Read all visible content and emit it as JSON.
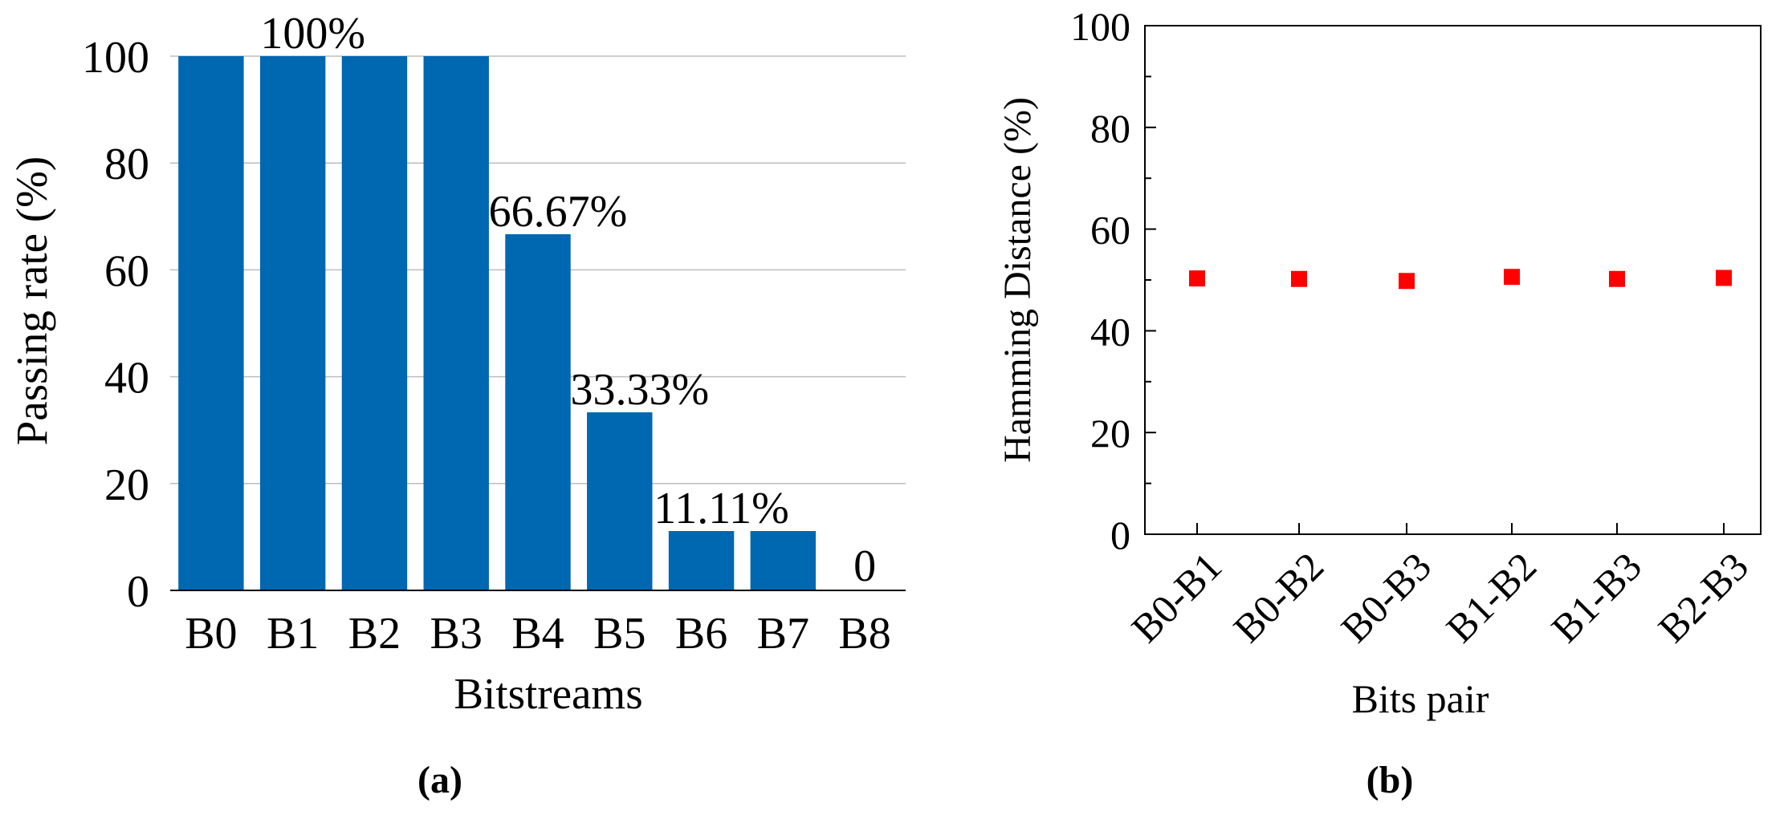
{
  "chart_data": [
    {
      "type": "bar",
      "panel_label": "(a)",
      "xlabel": "Bitstreams",
      "ylabel": "Passing rate (%)",
      "ylim": [
        0,
        100
      ],
      "yticks": [
        "0",
        "20",
        "40",
        "60",
        "80",
        "100"
      ],
      "ytick_values": [
        0,
        20,
        40,
        60,
        80,
        100
      ],
      "categories": [
        "B0",
        "B1",
        "B2",
        "B3",
        "B4",
        "B5",
        "B6",
        "B7",
        "B8"
      ],
      "values": [
        100,
        100,
        100,
        100,
        66.67,
        33.33,
        11.11,
        11.11,
        0
      ],
      "data_labels": [
        {
          "text": "100%",
          "category": "B1"
        },
        {
          "text": "66.67%",
          "category": "B4"
        },
        {
          "text": "33.33%",
          "category": "B5"
        },
        {
          "text": "11.11%",
          "category": "B6"
        },
        {
          "text": "0",
          "category": "B8"
        }
      ],
      "bar_color": "#0067B1",
      "grid": true
    },
    {
      "type": "scatter",
      "panel_label": "(b)",
      "xlabel": "Bits pair",
      "ylabel": "Hamming Distance (%)",
      "ylim": [
        0,
        100
      ],
      "yticks": [
        "0",
        "20",
        "40",
        "60",
        "80",
        "100"
      ],
      "ytick_values": [
        0,
        20,
        40,
        60,
        80,
        100
      ],
      "categories": [
        "B0-B1",
        "B0-B2",
        "B0-B3",
        "B1-B2",
        "B1-B3",
        "B2-B3"
      ],
      "values": [
        50.3,
        50.2,
        49.8,
        50.6,
        50.2,
        50.4
      ],
      "marker": "square",
      "marker_color": "#FF0000",
      "grid": false
    }
  ]
}
